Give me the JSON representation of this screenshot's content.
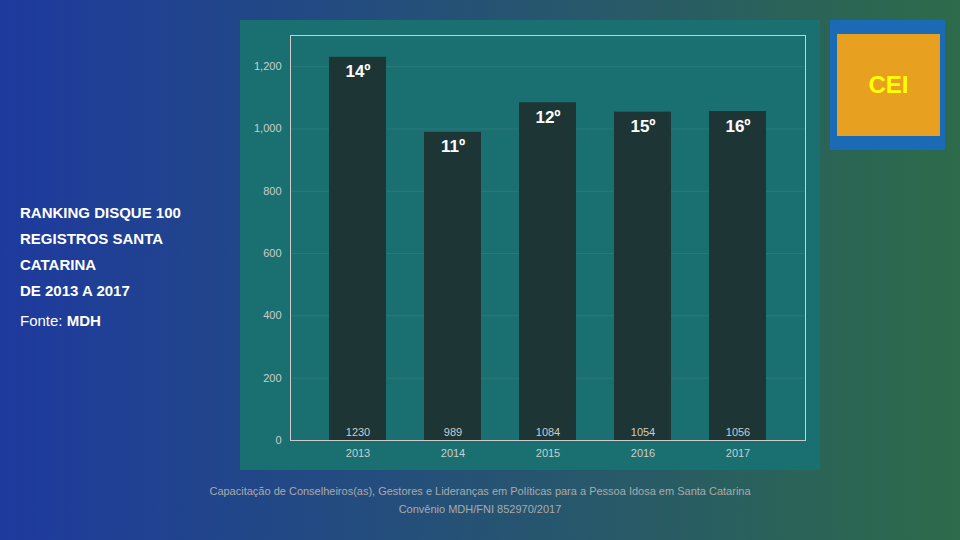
{
  "chart_data": {
    "type": "bar",
    "title": "RANKING DISQUE 100\nREGISTROS SANTA\nCATARINA\nDE 2013 A 2017",
    "subtitle": "Fonte: MDH",
    "categories": [
      "2013",
      "2014",
      "2015",
      "2016",
      "2017"
    ],
    "values": [
      1230,
      989,
      1084,
      1054,
      1056
    ],
    "color": "#1e3535",
    "ylim": [
      0,
      1300
    ],
    "yticks": [
      0,
      200,
      400,
      600,
      800,
      {
        "value": 1000,
        "label": "1,000"
      },
      {
        "value": 1200,
        "label": "1,200"
      }
    ],
    "grid": true,
    "data_labels": true,
    "annotations": [
      {
        "x": "2013",
        "text": "14º"
      },
      {
        "x": "2014",
        "text": "11º"
      },
      {
        "x": "2015",
        "text": "12º"
      },
      {
        "x": "2016",
        "text": "15º"
      },
      {
        "x": "2017",
        "text": "16º"
      },
      "Capacitação de Conselheiros(as), Gestores e Lideranças em Políticas para a Pessoa Idosa em Santa Catarina",
      "Convênio MDH/FNI 852970/2017",
      "CEI"
    ]
  }
}
